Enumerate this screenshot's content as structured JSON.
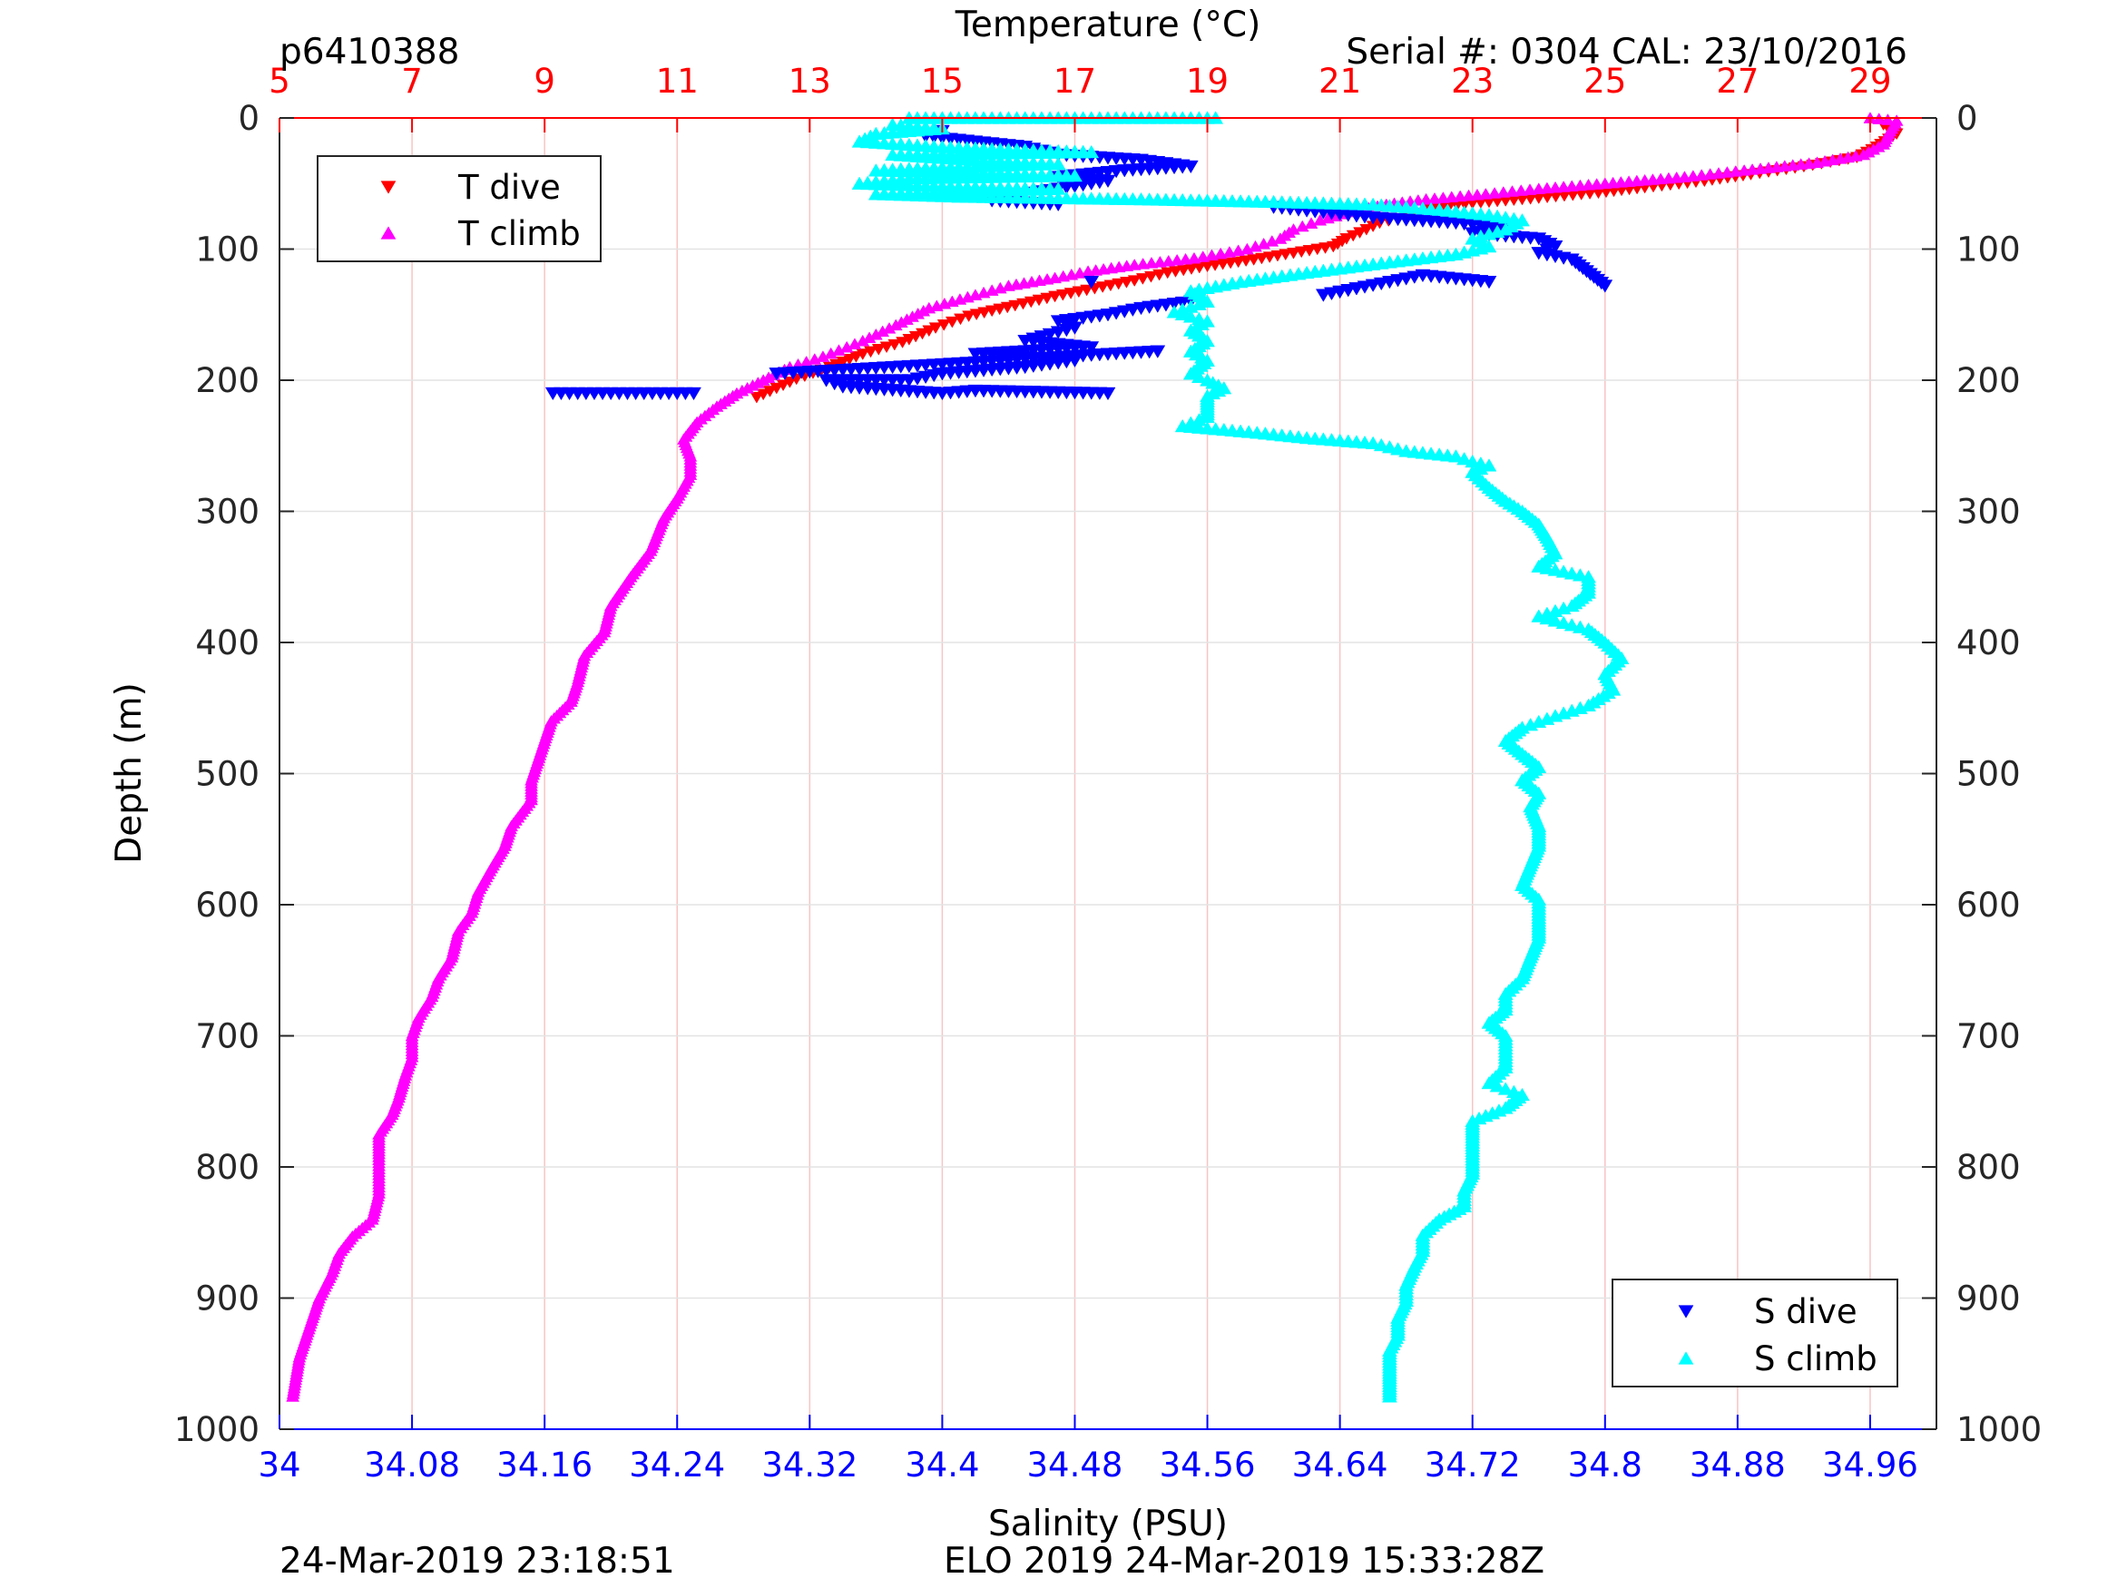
{
  "header": {
    "profile_id": "p6410388",
    "serial": "Serial #: 0304  CAL: 23/10/2016"
  },
  "footer": {
    "left_timestamp": "24-Mar-2019 23:18:51",
    "center_text": "ELO 2019 24-Mar-2019 15:33:28Z"
  },
  "colors": {
    "t_dive": "#ff0000",
    "t_climb": "#ff00ff",
    "s_dive": "#0000ff",
    "s_climb": "#00ffff",
    "temperature_axis": "#ff0000",
    "salinity_axis": "#0000ff",
    "depth_axis": "#262626"
  },
  "chart_data": {
    "type": "scatter",
    "grid": true,
    "temperature_axis": {
      "label": "Temperature (°C)",
      "position": "top",
      "range": [
        5,
        30
      ],
      "ticks": [
        "5",
        "7",
        "9",
        "11",
        "13",
        "15",
        "17",
        "19",
        "21",
        "23",
        "25",
        "27",
        "29"
      ]
    },
    "salinity_axis": {
      "label": "Salinity (PSU)",
      "position": "bottom",
      "range": [
        34.0,
        35.0
      ],
      "ticks": [
        "34",
        "34.08",
        "34.16",
        "34.24",
        "34.32",
        "34.4",
        "34.48",
        "34.56",
        "34.64",
        "34.72",
        "34.8",
        "34.88",
        "34.96"
      ]
    },
    "depth_axis": {
      "label": "Depth (m)",
      "range": [
        0,
        1000
      ],
      "reversed": true,
      "ticks": [
        "0",
        "100",
        "200",
        "300",
        "400",
        "500",
        "600",
        "700",
        "800",
        "900",
        "1000"
      ]
    },
    "legends": [
      {
        "placement": "top-left",
        "entries": [
          "T dive",
          "T climb"
        ]
      },
      {
        "placement": "bottom-right",
        "entries": [
          "S dive",
          "S climb"
        ]
      }
    ],
    "series": [
      {
        "name": "T dive",
        "axis": "temperature",
        "marker": "triangle-down",
        "points": [
          [
            29.2,
            5
          ],
          [
            29.4,
            12
          ],
          [
            29.1,
            22
          ],
          [
            28.8,
            30
          ],
          [
            28.0,
            37
          ],
          [
            27.2,
            43
          ],
          [
            26.5,
            48
          ],
          [
            25.6,
            53
          ],
          [
            24.9,
            57
          ],
          [
            24.0,
            61
          ],
          [
            23.0,
            65
          ],
          [
            22.3,
            70
          ],
          [
            22.0,
            75
          ],
          [
            21.6,
            80
          ],
          [
            21.4,
            85
          ],
          [
            21.1,
            92
          ],
          [
            20.9,
            98
          ],
          [
            20.3,
            103
          ],
          [
            19.7,
            108
          ],
          [
            19.0,
            113
          ],
          [
            18.4,
            118
          ],
          [
            17.9,
            124
          ],
          [
            17.3,
            130
          ],
          [
            16.7,
            136
          ],
          [
            16.1,
            143
          ],
          [
            15.4,
            151
          ],
          [
            14.9,
            160
          ],
          [
            14.4,
            171
          ],
          [
            13.8,
            180
          ],
          [
            13.3,
            190
          ],
          [
            12.8,
            199
          ],
          [
            12.5,
            206
          ],
          [
            12.2,
            213
          ]
        ]
      },
      {
        "name": "T climb",
        "axis": "temperature",
        "marker": "triangle-up",
        "points": [
          [
            29.0,
            0
          ],
          [
            29.4,
            2
          ],
          [
            29.3,
            10
          ],
          [
            29.2,
            20
          ],
          [
            28.9,
            28
          ],
          [
            28.2,
            34
          ],
          [
            27.1,
            40
          ],
          [
            26.2,
            45
          ],
          [
            25.0,
            50
          ],
          [
            24.0,
            54
          ],
          [
            23.2,
            58
          ],
          [
            22.3,
            62
          ],
          [
            21.7,
            66
          ],
          [
            21.3,
            70
          ],
          [
            20.7,
            78
          ],
          [
            20.3,
            85
          ],
          [
            20.1,
            92
          ],
          [
            19.6,
            100
          ],
          [
            18.8,
            107
          ],
          [
            17.9,
            112
          ],
          [
            17.2,
            117
          ],
          [
            16.7,
            122
          ],
          [
            16.0,
            128
          ],
          [
            15.5,
            135
          ],
          [
            14.8,
            145
          ],
          [
            14.3,
            158
          ],
          [
            13.8,
            170
          ],
          [
            13.2,
            182
          ],
          [
            12.7,
            190
          ],
          [
            12.3,
            200
          ],
          [
            11.9,
            210
          ],
          [
            11.6,
            220
          ],
          [
            11.3,
            232
          ],
          [
            11.1,
            245
          ],
          [
            11.2,
            258
          ],
          [
            11.2,
            272
          ],
          [
            11.0,
            290
          ],
          [
            10.8,
            305
          ],
          [
            10.6,
            330
          ],
          [
            10.3,
            350
          ],
          [
            10.0,
            372
          ],
          [
            9.9,
            392
          ],
          [
            9.6,
            410
          ],
          [
            9.5,
            430
          ],
          [
            9.4,
            445
          ],
          [
            9.1,
            460
          ],
          [
            9.0,
            475
          ],
          [
            8.9,
            490
          ],
          [
            8.8,
            505
          ],
          [
            8.8,
            520
          ],
          [
            8.5,
            540
          ],
          [
            8.4,
            555
          ],
          [
            8.2,
            572
          ],
          [
            8.0,
            590
          ],
          [
            7.9,
            606
          ],
          [
            7.7,
            620
          ],
          [
            7.6,
            640
          ],
          [
            7.4,
            656
          ],
          [
            7.3,
            670
          ],
          [
            7.1,
            686
          ],
          [
            7.0,
            700
          ],
          [
            7.0,
            716
          ],
          [
            6.9,
            730
          ],
          [
            6.8,
            747
          ],
          [
            6.7,
            760
          ],
          [
            6.5,
            775
          ],
          [
            6.5,
            790
          ],
          [
            6.5,
            806
          ],
          [
            6.5,
            820
          ],
          [
            6.4,
            840
          ],
          [
            6.1,
            853
          ],
          [
            5.9,
            866
          ],
          [
            5.8,
            880
          ],
          [
            5.6,
            900
          ],
          [
            5.5,
            915
          ],
          [
            5.4,
            930
          ],
          [
            5.3,
            945
          ],
          [
            5.25,
            960
          ],
          [
            5.2,
            975
          ]
        ]
      },
      {
        "name": "S dive",
        "axis": "salinity",
        "marker": "triangle-down",
        "points": [
          [
            34.4,
            10
          ],
          [
            34.39,
            14
          ],
          [
            34.42,
            18
          ],
          [
            34.45,
            22
          ],
          [
            34.47,
            28
          ],
          [
            34.52,
            32
          ],
          [
            34.55,
            37
          ],
          [
            34.51,
            40
          ],
          [
            34.47,
            45
          ],
          [
            34.5,
            48
          ],
          [
            34.48,
            52
          ],
          [
            34.45,
            58
          ],
          [
            34.43,
            63
          ],
          [
            34.47,
            66
          ],
          [
            34.6,
            68
          ],
          [
            34.63,
            72
          ],
          [
            34.66,
            76
          ],
          [
            34.71,
            80
          ],
          [
            34.74,
            84
          ],
          [
            34.72,
            88
          ],
          [
            34.76,
            92
          ],
          [
            34.77,
            98
          ],
          [
            34.76,
            103
          ],
          [
            34.78,
            108
          ],
          [
            34.8,
            128
          ],
          [
            34.65,
            130
          ],
          [
            34.63,
            135
          ],
          [
            34.69,
            120
          ],
          [
            34.73,
            125
          ],
          [
            34.55,
            140
          ],
          [
            34.52,
            145
          ],
          [
            34.5,
            150
          ],
          [
            34.47,
            155
          ],
          [
            34.48,
            160
          ],
          [
            34.45,
            170
          ],
          [
            34.49,
            175
          ],
          [
            34.42,
            180
          ],
          [
            34.48,
            185
          ],
          [
            34.45,
            190
          ],
          [
            34.4,
            195
          ],
          [
            34.38,
            200
          ],
          [
            34.33,
            200
          ],
          [
            34.34,
            205
          ],
          [
            34.4,
            210
          ],
          [
            34.42,
            208
          ],
          [
            34.5,
            210
          ],
          [
            34.25,
            210
          ],
          [
            34.165,
            210
          ],
          [
            34.3,
            195
          ],
          [
            34.37,
            190
          ],
          [
            34.44,
            185
          ],
          [
            34.5,
            180
          ],
          [
            34.53,
            178
          ],
          [
            34.49,
            125
          ]
        ]
      },
      {
        "name": "S climb",
        "axis": "salinity",
        "marker": "triangle-up",
        "points": [
          [
            34.38,
            0
          ],
          [
            34.41,
            0
          ],
          [
            34.45,
            0
          ],
          [
            34.52,
            0
          ],
          [
            34.555,
            0
          ],
          [
            34.565,
            0
          ],
          [
            34.37,
            5
          ],
          [
            34.4,
            8
          ],
          [
            34.36,
            12
          ],
          [
            34.35,
            18
          ],
          [
            34.4,
            22
          ],
          [
            34.44,
            24
          ],
          [
            34.49,
            26
          ],
          [
            34.37,
            28
          ],
          [
            34.42,
            32
          ],
          [
            34.47,
            35
          ],
          [
            34.39,
            38
          ],
          [
            34.36,
            40
          ],
          [
            34.43,
            42
          ],
          [
            34.48,
            44
          ],
          [
            34.38,
            46
          ],
          [
            34.35,
            50
          ],
          [
            34.4,
            52
          ],
          [
            34.47,
            54
          ],
          [
            34.36,
            58
          ],
          [
            34.41,
            60
          ],
          [
            34.52,
            62
          ],
          [
            34.6,
            64
          ],
          [
            34.66,
            66
          ],
          [
            34.7,
            70
          ],
          [
            34.73,
            74
          ],
          [
            34.75,
            78
          ],
          [
            34.74,
            85
          ],
          [
            34.72,
            92
          ],
          [
            34.73,
            98
          ],
          [
            34.71,
            104
          ],
          [
            34.67,
            110
          ],
          [
            34.62,
            118
          ],
          [
            34.58,
            125
          ],
          [
            34.55,
            132
          ],
          [
            34.56,
            140
          ],
          [
            34.54,
            148
          ],
          [
            34.56,
            155
          ],
          [
            34.55,
            162
          ],
          [
            34.56,
            170
          ],
          [
            34.55,
            178
          ],
          [
            34.56,
            185
          ],
          [
            34.55,
            195
          ],
          [
            34.56,
            200
          ],
          [
            34.57,
            206
          ],
          [
            34.56,
            212
          ],
          [
            34.56,
            220
          ],
          [
            34.56,
            228
          ],
          [
            34.545,
            235
          ],
          [
            34.59,
            240
          ],
          [
            34.62,
            244
          ],
          [
            34.66,
            248
          ],
          [
            34.68,
            254
          ],
          [
            34.71,
            258
          ],
          [
            34.72,
            262
          ],
          [
            34.73,
            265
          ],
          [
            34.72,
            270
          ],
          [
            34.73,
            282
          ],
          [
            34.74,
            292
          ],
          [
            34.75,
            300
          ],
          [
            34.76,
            310
          ],
          [
            34.765,
            320
          ],
          [
            34.77,
            332
          ],
          [
            34.76,
            342
          ],
          [
            34.79,
            350
          ],
          [
            34.79,
            362
          ],
          [
            34.78,
            372
          ],
          [
            34.76,
            380
          ],
          [
            34.79,
            390
          ],
          [
            34.8,
            400
          ],
          [
            34.81,
            412
          ],
          [
            34.8,
            424
          ],
          [
            34.805,
            436
          ],
          [
            34.79,
            448
          ],
          [
            34.77,
            456
          ],
          [
            34.75,
            465
          ],
          [
            34.74,
            475
          ],
          [
            34.75,
            485
          ],
          [
            34.76,
            495
          ],
          [
            34.75,
            505
          ],
          [
            34.76,
            515
          ],
          [
            34.755,
            525
          ],
          [
            34.76,
            540
          ],
          [
            34.76,
            555
          ],
          [
            34.755,
            570
          ],
          [
            34.75,
            585
          ],
          [
            34.76,
            596
          ],
          [
            34.76,
            610
          ],
          [
            34.76,
            625
          ],
          [
            34.755,
            640
          ],
          [
            34.75,
            656
          ],
          [
            34.74,
            668
          ],
          [
            34.74,
            680
          ],
          [
            34.73,
            690
          ],
          [
            34.74,
            700
          ],
          [
            34.74,
            712
          ],
          [
            34.74,
            724
          ],
          [
            34.73,
            736
          ],
          [
            34.75,
            745
          ],
          [
            34.74,
            755
          ],
          [
            34.72,
            765
          ],
          [
            34.72,
            775
          ],
          [
            34.72,
            790
          ],
          [
            34.72,
            805
          ],
          [
            34.715,
            818
          ],
          [
            34.715,
            830
          ],
          [
            34.7,
            840
          ],
          [
            34.69,
            852
          ],
          [
            34.69,
            864
          ],
          [
            34.685,
            876
          ],
          [
            34.68,
            890
          ],
          [
            34.68,
            902
          ],
          [
            34.675,
            915
          ],
          [
            34.675,
            928
          ],
          [
            34.67,
            940
          ],
          [
            34.67,
            955
          ],
          [
            34.67,
            965
          ],
          [
            34.67,
            975
          ]
        ]
      }
    ]
  }
}
